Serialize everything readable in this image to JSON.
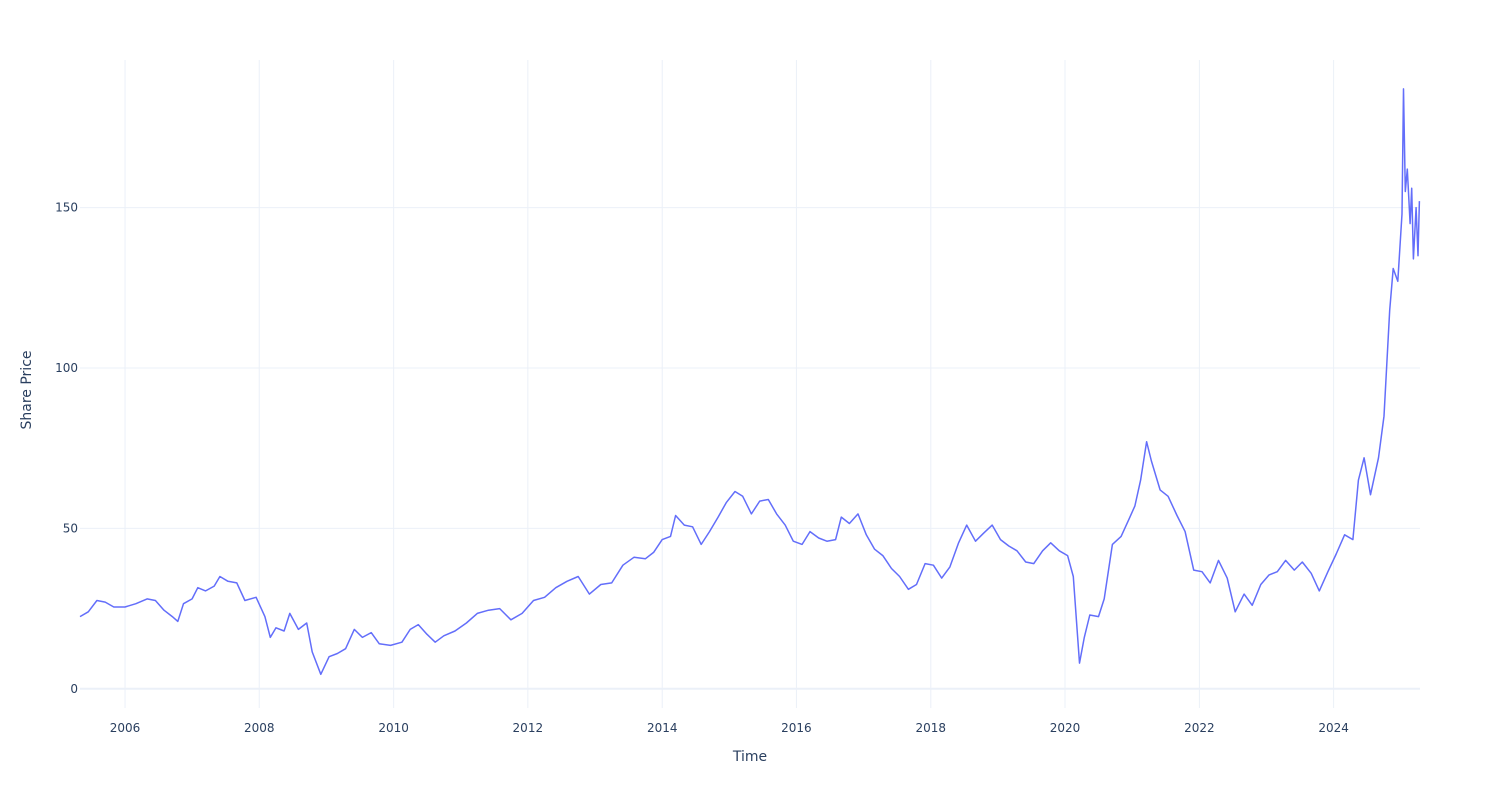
{
  "chart_data": {
    "type": "line",
    "title": "",
    "xlabel": "Time",
    "ylabel": "Share Price",
    "xlim": [
      "2005-05-01",
      "2025-04-15"
    ],
    "ylim": [
      -6,
      196
    ],
    "grid": true,
    "legend": "none",
    "colors": {
      "series": "#636efa",
      "grid": "#ebf0f8",
      "text": "#2a3f5f"
    },
    "x_ticks": [
      "2006",
      "2008",
      "2010",
      "2012",
      "2014",
      "2016",
      "2018",
      "2020",
      "2022",
      "2024"
    ],
    "y_ticks": [
      "0",
      "50",
      "100",
      "150"
    ],
    "x_tick_values": [
      "2006-01-01",
      "2008-01-01",
      "2010-01-01",
      "2012-01-01",
      "2014-01-01",
      "2016-01-01",
      "2018-01-01",
      "2020-01-01",
      "2022-01-01",
      "2024-01-01"
    ],
    "y_tick_values": [
      0,
      50,
      100,
      150
    ],
    "series": [
      {
        "name": "",
        "points": [
          [
            "2005-05-01",
            22.5
          ],
          [
            "2005-06-15",
            24.0
          ],
          [
            "2005-08-01",
            27.5
          ],
          [
            "2005-09-15",
            27.0
          ],
          [
            "2005-11-01",
            25.5
          ],
          [
            "2006-01-01",
            25.5
          ],
          [
            "2006-03-01",
            26.5
          ],
          [
            "2006-05-01",
            28.0
          ],
          [
            "2006-06-15",
            27.5
          ],
          [
            "2006-08-01",
            24.5
          ],
          [
            "2006-09-15",
            22.5
          ],
          [
            "2006-10-15",
            21.0
          ],
          [
            "2006-11-15",
            26.5
          ],
          [
            "2007-01-01",
            28.0
          ],
          [
            "2007-02-01",
            31.5
          ],
          [
            "2007-03-15",
            30.5
          ],
          [
            "2007-05-01",
            32.0
          ],
          [
            "2007-06-01",
            35.0
          ],
          [
            "2007-07-15",
            33.5
          ],
          [
            "2007-09-01",
            33.0
          ],
          [
            "2007-10-15",
            27.5
          ],
          [
            "2007-12-15",
            28.5
          ],
          [
            "2008-02-01",
            22.5
          ],
          [
            "2008-03-01",
            16.0
          ],
          [
            "2008-04-01",
            19.0
          ],
          [
            "2008-05-15",
            18.0
          ],
          [
            "2008-06-15",
            23.5
          ],
          [
            "2008-08-01",
            18.5
          ],
          [
            "2008-09-15",
            20.5
          ],
          [
            "2008-10-15",
            11.5
          ],
          [
            "2008-12-01",
            4.5
          ],
          [
            "2009-01-15",
            10.0
          ],
          [
            "2009-03-01",
            11.0
          ],
          [
            "2009-04-15",
            12.5
          ],
          [
            "2009-06-01",
            18.5
          ],
          [
            "2009-07-15",
            16.0
          ],
          [
            "2009-09-01",
            17.5
          ],
          [
            "2009-10-15",
            14.0
          ],
          [
            "2009-12-15",
            13.5
          ],
          [
            "2010-02-15",
            14.5
          ],
          [
            "2010-04-01",
            18.5
          ],
          [
            "2010-05-15",
            20.0
          ],
          [
            "2010-07-01",
            17.0
          ],
          [
            "2010-08-15",
            14.5
          ],
          [
            "2010-10-01",
            16.5
          ],
          [
            "2010-12-01",
            18.0
          ],
          [
            "2011-02-01",
            20.5
          ],
          [
            "2011-04-01",
            23.5
          ],
          [
            "2011-06-01",
            24.5
          ],
          [
            "2011-08-01",
            25.0
          ],
          [
            "2011-10-01",
            21.5
          ],
          [
            "2011-12-01",
            23.5
          ],
          [
            "2012-02-01",
            27.5
          ],
          [
            "2012-04-01",
            28.5
          ],
          [
            "2012-06-01",
            31.5
          ],
          [
            "2012-08-01",
            33.5
          ],
          [
            "2012-10-01",
            35.0
          ],
          [
            "2012-12-01",
            29.5
          ],
          [
            "2013-02-01",
            32.5
          ],
          [
            "2013-04-01",
            33.0
          ],
          [
            "2013-06-01",
            38.5
          ],
          [
            "2013-08-01",
            41.0
          ],
          [
            "2013-10-01",
            40.5
          ],
          [
            "2013-11-15",
            42.5
          ],
          [
            "2014-01-01",
            46.5
          ],
          [
            "2014-02-15",
            47.5
          ],
          [
            "2014-03-15",
            54.0
          ],
          [
            "2014-05-01",
            51.0
          ],
          [
            "2014-06-15",
            50.5
          ],
          [
            "2014-08-01",
            45.0
          ],
          [
            "2014-09-15",
            49.0
          ],
          [
            "2014-11-01",
            53.5
          ],
          [
            "2014-12-15",
            58.0
          ],
          [
            "2015-02-01",
            61.5
          ],
          [
            "2015-03-15",
            60.0
          ],
          [
            "2015-05-01",
            54.5
          ],
          [
            "2015-06-15",
            58.5
          ],
          [
            "2015-08-01",
            59.0
          ],
          [
            "2015-09-15",
            54.5
          ],
          [
            "2015-11-01",
            51.0
          ],
          [
            "2015-12-15",
            46.0
          ],
          [
            "2016-02-01",
            45.0
          ],
          [
            "2016-03-15",
            49.0
          ],
          [
            "2016-05-01",
            47.0
          ],
          [
            "2016-06-15",
            46.0
          ],
          [
            "2016-08-01",
            46.5
          ],
          [
            "2016-09-01",
            53.5
          ],
          [
            "2016-10-15",
            51.5
          ],
          [
            "2016-12-01",
            54.5
          ],
          [
            "2017-01-15",
            48.0
          ],
          [
            "2017-03-01",
            43.5
          ],
          [
            "2017-04-15",
            41.5
          ],
          [
            "2017-06-01",
            37.5
          ],
          [
            "2017-07-15",
            35.0
          ],
          [
            "2017-09-01",
            31.0
          ],
          [
            "2017-10-15",
            32.5
          ],
          [
            "2017-12-01",
            39.0
          ],
          [
            "2018-01-15",
            38.5
          ],
          [
            "2018-03-01",
            34.5
          ],
          [
            "2018-04-15",
            38.0
          ],
          [
            "2018-06-01",
            45.5
          ],
          [
            "2018-07-15",
            51.0
          ],
          [
            "2018-09-01",
            46.0
          ],
          [
            "2018-10-15",
            48.5
          ],
          [
            "2018-12-01",
            51.0
          ],
          [
            "2019-01-15",
            46.5
          ],
          [
            "2019-03-01",
            44.5
          ],
          [
            "2019-04-15",
            43.0
          ],
          [
            "2019-06-01",
            39.5
          ],
          [
            "2019-07-15",
            39.0
          ],
          [
            "2019-09-01",
            43.0
          ],
          [
            "2019-10-15",
            45.5
          ],
          [
            "2019-12-01",
            43.0
          ],
          [
            "2020-01-15",
            41.5
          ],
          [
            "2020-02-15",
            35.0
          ],
          [
            "2020-03-20",
            8.0
          ],
          [
            "2020-04-15",
            16.0
          ],
          [
            "2020-05-15",
            23.0
          ],
          [
            "2020-07-01",
            22.5
          ],
          [
            "2020-08-01",
            28.0
          ],
          [
            "2020-09-15",
            45.0
          ],
          [
            "2020-11-01",
            47.5
          ],
          [
            "2020-12-15",
            53.0
          ],
          [
            "2021-01-15",
            57.0
          ],
          [
            "2021-02-15",
            65.0
          ],
          [
            "2021-03-20",
            77.0
          ],
          [
            "2021-04-15",
            71.0
          ],
          [
            "2021-06-01",
            62.0
          ],
          [
            "2021-07-15",
            60.0
          ],
          [
            "2021-09-01",
            54.0
          ],
          [
            "2021-10-15",
            49.0
          ],
          [
            "2021-12-01",
            37.0
          ],
          [
            "2022-01-15",
            36.5
          ],
          [
            "2022-03-01",
            33.0
          ],
          [
            "2022-04-15",
            40.0
          ],
          [
            "2022-06-01",
            34.5
          ],
          [
            "2022-07-15",
            24.0
          ],
          [
            "2022-09-01",
            29.5
          ],
          [
            "2022-10-15",
            26.0
          ],
          [
            "2022-12-01",
            32.5
          ],
          [
            "2023-01-15",
            35.5
          ],
          [
            "2023-03-01",
            36.5
          ],
          [
            "2023-04-15",
            40.0
          ],
          [
            "2023-06-01",
            37.0
          ],
          [
            "2023-07-15",
            39.5
          ],
          [
            "2023-09-01",
            36.0
          ],
          [
            "2023-10-15",
            30.5
          ],
          [
            "2023-12-01",
            36.5
          ],
          [
            "2024-01-15",
            42.0
          ],
          [
            "2024-03-01",
            48.0
          ],
          [
            "2024-04-15",
            46.5
          ],
          [
            "2024-05-15",
            65.0
          ],
          [
            "2024-06-15",
            72.0
          ],
          [
            "2024-07-20",
            60.5
          ],
          [
            "2024-09-01",
            72.0
          ],
          [
            "2024-10-01",
            85.0
          ],
          [
            "2024-11-01",
            118.0
          ],
          [
            "2024-11-20",
            131.0
          ],
          [
            "2024-12-15",
            127.0
          ],
          [
            "2025-01-07",
            148.0
          ],
          [
            "2025-01-15",
            187.0
          ],
          [
            "2025-01-25",
            155.0
          ],
          [
            "2025-02-05",
            162.0
          ],
          [
            "2025-02-20",
            145.0
          ],
          [
            "2025-03-01",
            156.0
          ],
          [
            "2025-03-10",
            134.0
          ],
          [
            "2025-03-25",
            150.0
          ],
          [
            "2025-04-04",
            135.0
          ],
          [
            "2025-04-12",
            152.0
          ]
        ]
      }
    ]
  }
}
